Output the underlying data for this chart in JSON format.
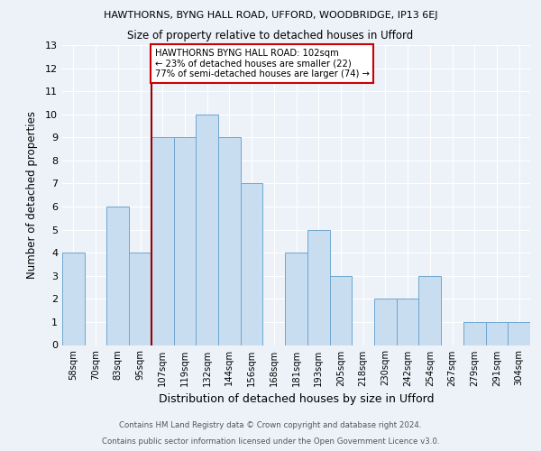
{
  "title1": "HAWTHORNS, BYNG HALL ROAD, UFFORD, WOODBRIDGE, IP13 6EJ",
  "title2": "Size of property relative to detached houses in Ufford",
  "xlabel": "Distribution of detached houses by size in Ufford",
  "ylabel": "Number of detached properties",
  "categories": [
    "58sqm",
    "70sqm",
    "83sqm",
    "95sqm",
    "107sqm",
    "119sqm",
    "132sqm",
    "144sqm",
    "156sqm",
    "168sqm",
    "181sqm",
    "193sqm",
    "205sqm",
    "218sqm",
    "230sqm",
    "242sqm",
    "254sqm",
    "267sqm",
    "279sqm",
    "291sqm",
    "304sqm"
  ],
  "values": [
    4,
    0,
    6,
    4,
    9,
    9,
    10,
    9,
    7,
    0,
    4,
    5,
    3,
    0,
    2,
    2,
    3,
    0,
    1,
    1,
    1
  ],
  "bar_color": "#c9ddf0",
  "bar_edge_color": "#6ea6cf",
  "ylim": [
    0,
    13
  ],
  "yticks": [
    0,
    1,
    2,
    3,
    4,
    5,
    6,
    7,
    8,
    9,
    10,
    11,
    12,
    13
  ],
  "property_line_color": "#990000",
  "annotation_text": "HAWTHORNS BYNG HALL ROAD: 102sqm\n← 23% of detached houses are smaller (22)\n77% of semi-detached houses are larger (74) →",
  "annotation_box_color": "#ffffff",
  "annotation_box_edge": "#cc0000",
  "footer1": "Contains HM Land Registry data © Crown copyright and database right 2024.",
  "footer2": "Contains public sector information licensed under the Open Government Licence v3.0.",
  "background_color": "#edf2f9",
  "grid_color": "#ffffff"
}
